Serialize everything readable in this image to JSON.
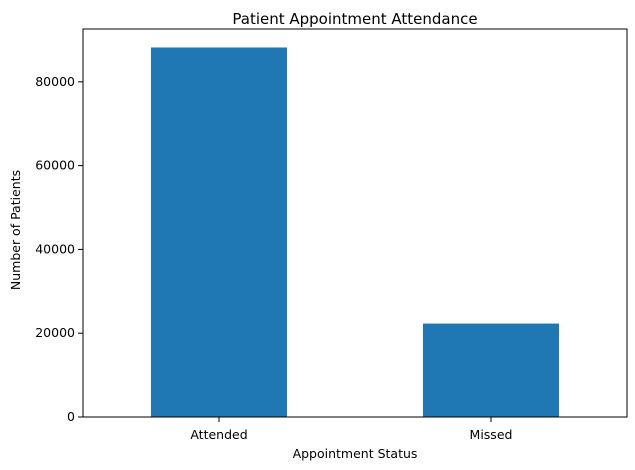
{
  "chart_data": {
    "type": "bar",
    "title": "Patient Appointment Attendance",
    "xlabel": "Appointment Status",
    "ylabel": "Number of Patients",
    "categories": [
      "Attended",
      "Missed"
    ],
    "values": [
      88200,
      22300
    ],
    "ylim": [
      0,
      92610
    ],
    "yticks": [
      0,
      20000,
      40000,
      60000,
      80000
    ],
    "grid": false,
    "legend": "none",
    "bar_color": "#1f77b4"
  }
}
